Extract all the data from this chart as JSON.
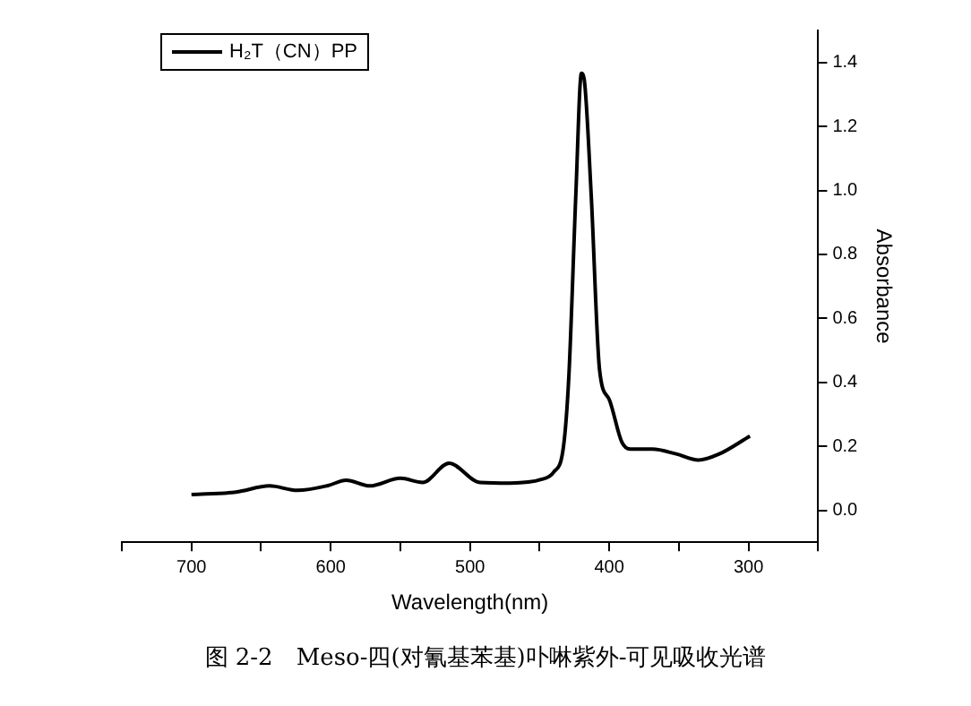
{
  "chart_data": {
    "type": "line",
    "xlabel": "Wavelength(nm)",
    "ylabel": "Absorbance",
    "annotations": [
      "图 2-2　Meso-四(对氰基苯基)卟啉紫外-可见吸收光谱"
    ],
    "x": [
      700,
      668,
      644,
      624,
      602,
      589,
      572,
      550,
      534,
      515,
      493,
      471,
      449,
      440,
      433,
      429,
      424,
      420,
      418,
      413,
      407,
      400,
      391,
      385,
      369,
      352,
      336,
      321,
      299
    ],
    "series": [
      {
        "name": "H₂T（CN）PP",
        "color": "#000000",
        "values": [
          0.049,
          0.057,
          0.076,
          0.062,
          0.077,
          0.094,
          0.076,
          0.1,
          0.087,
          0.147,
          0.087,
          0.085,
          0.096,
          0.119,
          0.195,
          0.421,
          0.988,
          1.366,
          1.347,
          0.988,
          0.44,
          0.346,
          0.213,
          0.191,
          0.191,
          0.176,
          0.157,
          0.176,
          0.232
        ]
      }
    ],
    "xlim": [
      750,
      250
    ],
    "xticks": [
      {
        "value": 750,
        "label": null
      },
      700,
      {
        "value": 650,
        "label": null
      },
      600,
      {
        "value": 550,
        "label": null
      },
      500,
      {
        "value": 450,
        "label": null
      },
      400,
      {
        "value": 350,
        "label": null
      },
      300,
      {
        "value": 250,
        "label": null
      }
    ],
    "ylim": [
      -0.1,
      1.5
    ],
    "yticks": [
      {
        "value": 0,
        "label": "0.0"
      },
      {
        "value": 0.2,
        "label": "0.2"
      },
      {
        "value": 0.4,
        "label": "0.4"
      },
      {
        "value": 0.6,
        "label": "0.6"
      },
      {
        "value": 0.8,
        "label": "0.8"
      },
      {
        "value": 1,
        "label": "1.0"
      },
      {
        "value": 1.2,
        "label": "1.2"
      },
      {
        "value": 1.4,
        "label": "1.4"
      }
    ],
    "grid": false,
    "legend": "top left",
    "marker": "none",
    "line_style": "solid"
  }
}
